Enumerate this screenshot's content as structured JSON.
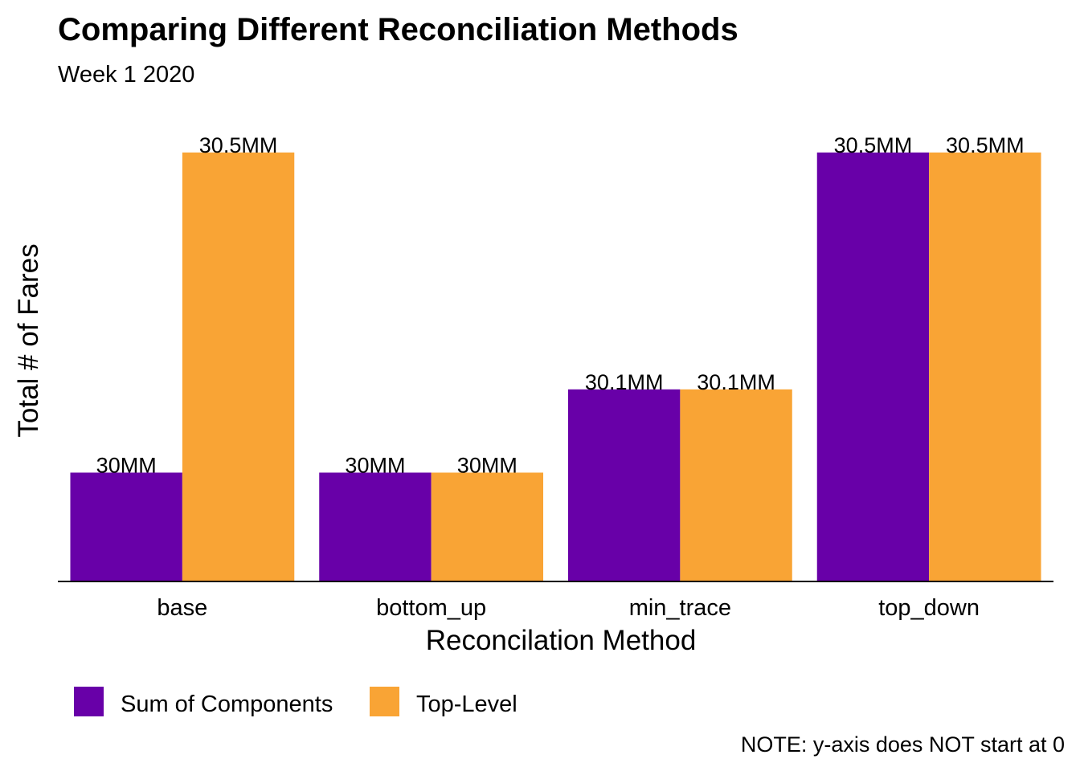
{
  "chart_data": {
    "type": "bar",
    "title": "Comparing Different Reconciliation Methods",
    "subtitle": "Week 1 2020",
    "xlabel": "Reconcilation Method",
    "ylabel": "Total # of Fares",
    "caption": "NOTE: y-axis does NOT start at 0",
    "categories": [
      "base",
      "bottom_up",
      "min_trace",
      "top_down"
    ],
    "ylim": [
      29.82,
      30.54
    ],
    "grid": false,
    "legend_position": "bottom-left",
    "series": [
      {
        "name": "Sum of Components",
        "color": "#6800A8",
        "values": [
          29.99,
          29.99,
          30.12,
          30.49
        ],
        "labels": [
          "30MM",
          "30MM",
          "30.1MM",
          "30.5MM"
        ]
      },
      {
        "name": "Top-Level",
        "color": "#F9A435",
        "values": [
          30.49,
          29.99,
          30.12,
          30.49
        ],
        "labels": [
          "30.5MM",
          "30MM",
          "30.1MM",
          "30.5MM"
        ]
      }
    ]
  }
}
